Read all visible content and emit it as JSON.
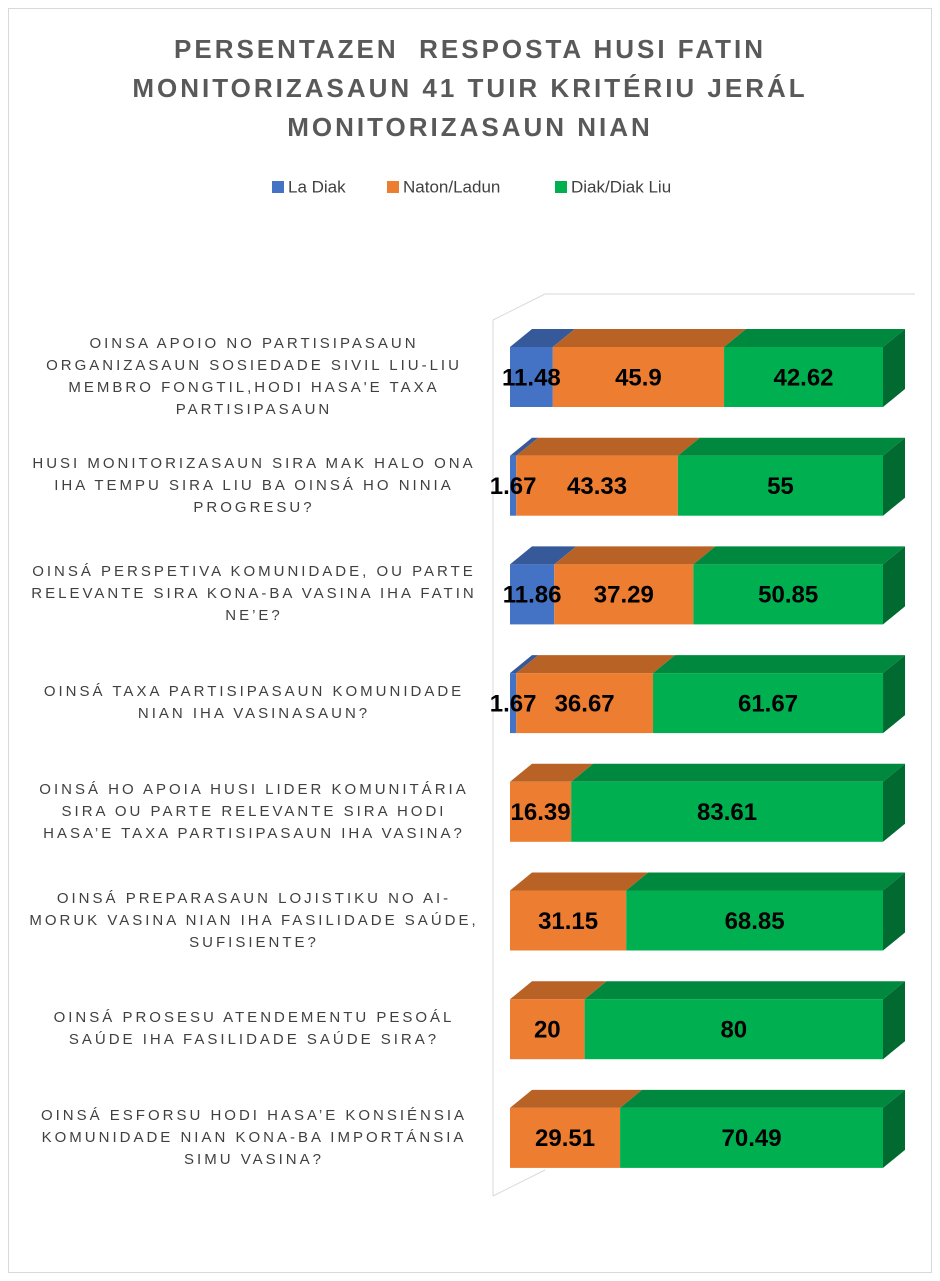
{
  "chart_data": {
    "type": "bar",
    "orientation": "horizontal",
    "stacked": true,
    "title": "PERSENTAZEN  RESPOSTA HUSI FATIN MONITORIZASAUN 41 TUIR KRITÉRIU JERÁL MONITORIZASAUN NIAN",
    "categories": [
      "OINSA APOIO NO PARTISIPASAUN ORGANIZASAUN SOSIEDADE SIVIL LIU-LIU MEMBRO FONGTIL,HODI HASA'E TAXA PARTISIPASAUN",
      "HUSI MONITORIZASAUN SIRA MAK HALO ONA IHA TEMPU SIRA LIU BA OINSÁ HO NINIA PROGRESU?",
      "OINSÁ PERSPETIVA KOMUNIDADE, OU PARTE RELEVANTE SIRA KONA-BA VASINA IHA FATIN NE’E?",
      "OINSÁ TAXA PARTISIPASAUN KOMUNIDADE NIAN IHA VASINASAUN?",
      "OINSÁ HO APOIA HUSI LIDER KOMUNITÁRIA SIRA OU PARTE RELEVANTE SIRA HODI HASA’E TAXA PARTISIPASAUN IHA VASINA?",
      "OINSÁ PREPARASAUN LOJISTIKU NO AI-MORUK VASINA NIAN IHA FASILIDADE SAÚDE, SUFISIENTE?",
      "OINSÁ PROSESU ATENDEMENTU PESOÁL SAÚDE IHA FASILIDADE SAÚDE SIRA?",
      "OINSÁ ESFORSU HODI HASA’E KONSIÉNSIA KOMUNIDADE NIAN KONA-BA IMPORTÁNSIA SIMU VASINA?"
    ],
    "series": [
      {
        "name": "La Diak",
        "color": "#4472c4",
        "values": [
          11.48,
          1.67,
          11.86,
          1.67,
          null,
          null,
          null,
          null
        ]
      },
      {
        "name": "Naton/Ladun",
        "color": "#ed7d31",
        "values": [
          45.9,
          43.33,
          37.29,
          36.67,
          16.39,
          31.15,
          20,
          29.51
        ]
      },
      {
        "name": "Diak/Diak Liu",
        "color": "#00b050",
        "values": [
          42.62,
          55,
          50.85,
          61.67,
          83.61,
          68.85,
          80,
          70.49
        ]
      }
    ],
    "xlim": [
      0,
      100
    ],
    "legend": "top",
    "data_labels": true
  }
}
